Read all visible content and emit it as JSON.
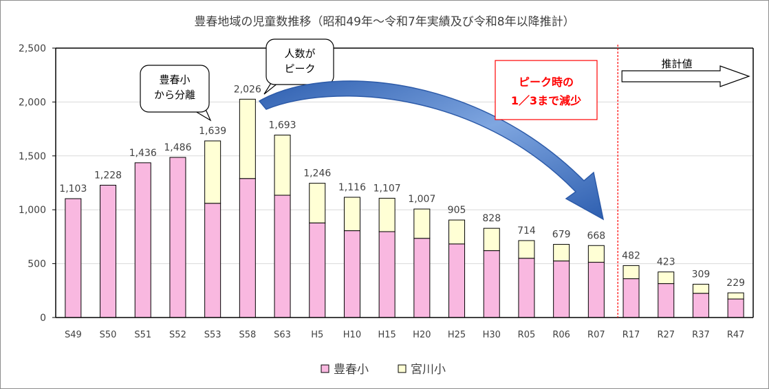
{
  "chart_data": {
    "type": "bar",
    "stacked": true,
    "title": "豊春地域の児童数推移（昭和49年～令和7年実績及び令和8年以降推計）",
    "categories": [
      "S49",
      "S50",
      "S51",
      "S52",
      "S53",
      "S58",
      "S63",
      "H5",
      "H10",
      "H15",
      "H20",
      "H25",
      "H30",
      "R05",
      "R06",
      "R07",
      "R17",
      "R27",
      "R37",
      "R47"
    ],
    "series": [
      {
        "name": "豊春小",
        "color": "#f9b8e0",
        "values": [
          1103,
          1228,
          1436,
          1486,
          1060,
          1290,
          1135,
          878,
          806,
          797,
          735,
          683,
          621,
          550,
          525,
          513,
          360,
          315,
          225,
          172
        ]
      },
      {
        "name": "宮川小",
        "color": "#ffffd5",
        "values": [
          0,
          0,
          0,
          0,
          579,
          736,
          558,
          368,
          310,
          310,
          272,
          222,
          207,
          164,
          154,
          155,
          122,
          108,
          84,
          57
        ]
      }
    ],
    "totals": [
      "1,103",
      "1,228",
      "1,436",
      "1,486",
      "1,639",
      "2,026",
      "1,693",
      "1,246",
      "1,116",
      "1,107",
      "1,007",
      "905",
      "828",
      "714",
      "679",
      "668",
      "482",
      "423",
      "309",
      "229"
    ],
    "ylim": [
      0,
      2500
    ],
    "yticks": [
      "0",
      "500",
      "1,000",
      "1,500",
      "2,000",
      "2,500"
    ],
    "ytick_values": [
      0,
      500,
      1000,
      1500,
      2000,
      2500
    ],
    "grid": true,
    "legend_position": "bottom",
    "annotations": {
      "split": "豊春小\nから分離",
      "peak": "人数が\nピーク",
      "decrease": "ピーク時の\n1／3まで減少",
      "projection": "推計値"
    },
    "projection_start_index": 16,
    "colors": {
      "highlight_text": "#ff0000",
      "highlight_border": "#ff0000",
      "arrow": "#3a6fc4",
      "divider": "#ff0000"
    }
  }
}
